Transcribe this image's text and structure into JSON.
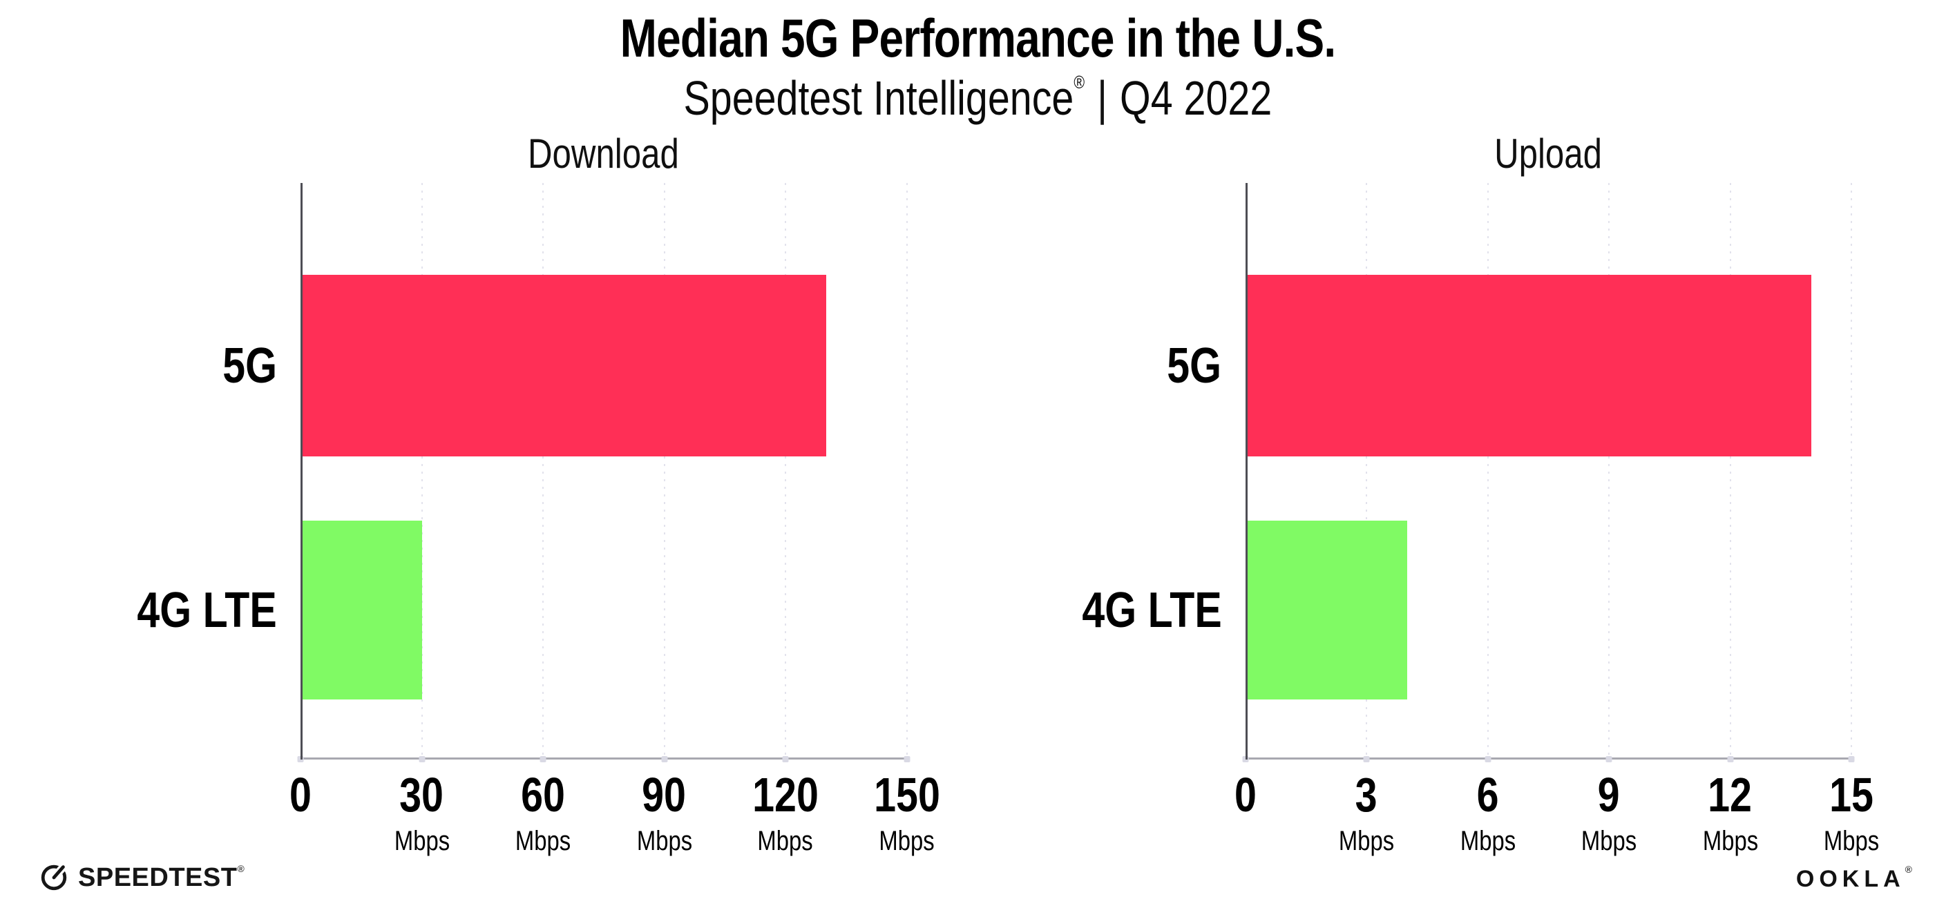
{
  "header": {
    "title": "Median 5G Performance in the U.S.",
    "subtitle_brand": "Speedtest Intelligence",
    "subtitle_reg": "®",
    "subtitle_separator": "|",
    "subtitle_period": "Q4 2022"
  },
  "chart_data": [
    {
      "type": "bar",
      "orientation": "horizontal",
      "title": "Download",
      "categories": [
        "5G",
        "4G LTE"
      ],
      "values": [
        130,
        30
      ],
      "unit": "Mbps",
      "xlim": [
        0,
        150
      ],
      "xticks": [
        0,
        30,
        60,
        90,
        120,
        150
      ],
      "bar_colors": [
        "#ff2f56",
        "#80fa64"
      ],
      "grid": "dotted-vertical",
      "legend": "none"
    },
    {
      "type": "bar",
      "orientation": "horizontal",
      "title": "Upload",
      "categories": [
        "5G",
        "4G LTE"
      ],
      "values": [
        14,
        4
      ],
      "unit": "Mbps",
      "xlim": [
        0,
        15
      ],
      "xticks": [
        0,
        3,
        6,
        9,
        12,
        15
      ],
      "bar_colors": [
        "#ff2f56",
        "#80fa64"
      ],
      "grid": "dotted-vertical",
      "legend": "none"
    }
  ],
  "footer": {
    "speedtest_logo_text": "SPEEDTEST",
    "speedtest_reg": "®",
    "speedtest_icon": "gauge-icon",
    "ookla_logo_text": "OOKLA",
    "ookla_reg": "®"
  },
  "colors": {
    "bar_5g": "#ff2f56",
    "bar_4g_lte": "#80fa64",
    "gridline": "#e2e2ec",
    "axis_y": "#4e4e55",
    "axis_x": "#a8a8b0",
    "text": "#000000"
  }
}
